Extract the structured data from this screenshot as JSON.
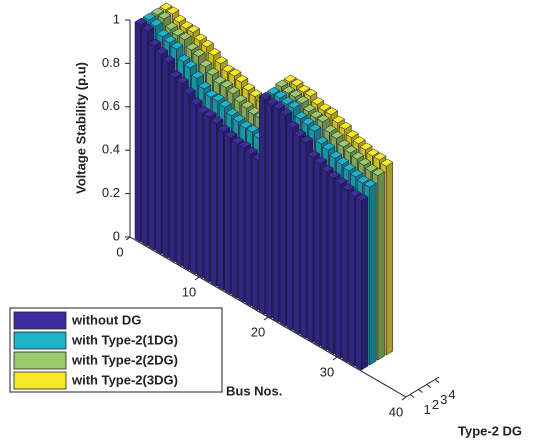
{
  "chart_data": {
    "type": "bar3d",
    "zlabel": "Voltage Stability (p.u)",
    "xlabel": "Bus Nos.",
    "ylabel": "Type-2 DG",
    "x": [
      1,
      2,
      3,
      4,
      5,
      6,
      7,
      8,
      9,
      10,
      11,
      12,
      13,
      14,
      15,
      16,
      17,
      18,
      19,
      20,
      21,
      22,
      23,
      24,
      25,
      26,
      27,
      28,
      29,
      30,
      31,
      32,
      33
    ],
    "series": [
      {
        "name": "without DG",
        "color": "#3d2c9e",
        "values": [
          1.0,
          0.99,
          0.94,
          0.92,
          0.9,
          0.85,
          0.84,
          0.81,
          0.78,
          0.76,
          0.76,
          0.75,
          0.73,
          0.72,
          0.71,
          0.71,
          0.7,
          0.69,
          0.99,
          0.98,
          0.98,
          0.97,
          0.93,
          0.91,
          0.9,
          0.85,
          0.84,
          0.82,
          0.81,
          0.8,
          0.79,
          0.78,
          0.78
        ]
      },
      {
        "name": "with Type-2(1DG)",
        "color": "#1db4c9",
        "values": [
          1.0,
          0.99,
          0.96,
          0.95,
          0.94,
          0.9,
          0.89,
          0.86,
          0.83,
          0.81,
          0.81,
          0.8,
          0.78,
          0.77,
          0.76,
          0.76,
          0.75,
          0.74,
          0.99,
          0.99,
          0.98,
          0.98,
          0.95,
          0.94,
          0.93,
          0.89,
          0.88,
          0.86,
          0.85,
          0.84,
          0.83,
          0.82,
          0.82
        ]
      },
      {
        "name": "with Type-2(2DG)",
        "color": "#9cc96b",
        "values": [
          1.0,
          1.0,
          0.97,
          0.96,
          0.96,
          0.93,
          0.92,
          0.89,
          0.87,
          0.85,
          0.85,
          0.84,
          0.82,
          0.81,
          0.8,
          0.8,
          0.79,
          0.78,
          1.0,
          0.99,
          0.99,
          0.98,
          0.96,
          0.95,
          0.95,
          0.92,
          0.91,
          0.89,
          0.88,
          0.87,
          0.86,
          0.85,
          0.85
        ]
      },
      {
        "name": "with Type-2(3DG)",
        "color": "#f7e829",
        "values": [
          1.0,
          1.0,
          0.98,
          0.97,
          0.97,
          0.95,
          0.94,
          0.92,
          0.9,
          0.88,
          0.88,
          0.87,
          0.85,
          0.84,
          0.83,
          0.83,
          0.82,
          0.81,
          1.0,
          1.0,
          0.99,
          0.99,
          0.97,
          0.96,
          0.96,
          0.94,
          0.93,
          0.91,
          0.9,
          0.89,
          0.88,
          0.88,
          0.87
        ]
      }
    ],
    "xlim": [
      0,
      40
    ],
    "xticks": [
      0,
      10,
      20,
      30,
      40
    ],
    "yticks": [
      1,
      2,
      3,
      4
    ],
    "zlim": [
      0,
      1
    ],
    "zticks": [
      0,
      0.2,
      0.4,
      0.6,
      0.8,
      1
    ]
  }
}
